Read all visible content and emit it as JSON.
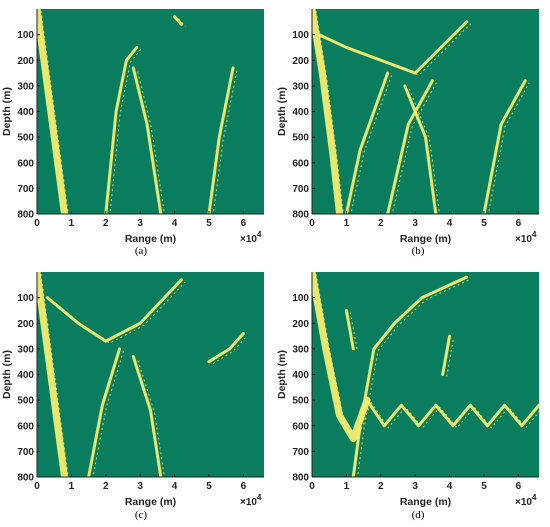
{
  "colors": {
    "background": "#0b7d5f",
    "signal": "#f3ee6e",
    "axis": "#222222"
  },
  "chart_data": [
    {
      "type": "heatmap",
      "panel_caption": "(a)",
      "xlabel": "Range (m)",
      "ylabel": "Depth (m)",
      "x_exponent_label": "×10",
      "x_exponent": "4",
      "xlim": [
        0,
        6.6
      ],
      "ylim": [
        0,
        800
      ],
      "y_inverted": true,
      "x_ticks": [
        "0",
        "1",
        "2",
        "3",
        "4",
        "5",
        "6"
      ],
      "y_ticks": [
        "100",
        "200",
        "300",
        "400",
        "500",
        "600",
        "700",
        "800"
      ],
      "rays": [
        {
          "points": [
            [
              0,
              0
            ],
            [
              0.2,
              200
            ],
            [
              0.5,
              500
            ],
            [
              0.8,
              800
            ]
          ]
        },
        {
          "points": [
            [
              2.0,
              800
            ],
            [
              2.3,
              400
            ],
            [
              2.6,
              200
            ],
            [
              2.9,
              150
            ]
          ]
        },
        {
          "points": [
            [
              3.6,
              800
            ],
            [
              3.2,
              450
            ],
            [
              2.8,
              230
            ]
          ]
        },
        {
          "points": [
            [
              4.0,
              30
            ],
            [
              4.2,
              60
            ]
          ]
        },
        {
          "points": [
            [
              5.0,
              800
            ],
            [
              5.3,
              500
            ],
            [
              5.7,
              230
            ]
          ]
        }
      ]
    },
    {
      "type": "heatmap",
      "panel_caption": "(b)",
      "xlabel": "Range (m)",
      "ylabel": "Depth (m)",
      "x_exponent_label": "×10",
      "x_exponent": "4",
      "xlim": [
        0,
        6.6
      ],
      "ylim": [
        0,
        800
      ],
      "y_inverted": true,
      "x_ticks": [
        "0",
        "1",
        "2",
        "3",
        "4",
        "5",
        "6"
      ],
      "y_ticks": [
        "100",
        "200",
        "300",
        "400",
        "500",
        "600",
        "700",
        "800"
      ],
      "rays": [
        {
          "points": [
            [
              0,
              0
            ],
            [
              0.3,
              250
            ],
            [
              0.6,
              560
            ],
            [
              0.8,
              800
            ]
          ]
        },
        {
          "points": [
            [
              0.2,
              100
            ],
            [
              1.0,
              150
            ],
            [
              2.0,
              200
            ],
            [
              3.0,
              250
            ],
            [
              4.5,
              50
            ]
          ]
        },
        {
          "points": [
            [
              1.0,
              800
            ],
            [
              1.4,
              550
            ],
            [
              2.2,
              250
            ]
          ]
        },
        {
          "points": [
            [
              2.2,
              800
            ],
            [
              2.8,
              450
            ],
            [
              3.5,
              280
            ]
          ]
        },
        {
          "points": [
            [
              3.6,
              800
            ],
            [
              3.3,
              500
            ],
            [
              2.7,
              300
            ]
          ]
        },
        {
          "points": [
            [
              5.0,
              800
            ],
            [
              5.5,
              450
            ],
            [
              6.2,
              280
            ]
          ]
        }
      ]
    },
    {
      "type": "heatmap",
      "panel_caption": "(c)",
      "xlabel": "Range (m)",
      "ylabel": "Depth (m)",
      "x_exponent_label": "×10",
      "x_exponent": "4",
      "xlim": [
        0,
        6.6
      ],
      "ylim": [
        0,
        800
      ],
      "y_inverted": true,
      "x_ticks": [
        "0",
        "1",
        "2",
        "3",
        "4",
        "5",
        "6"
      ],
      "y_ticks": [
        "100",
        "200",
        "300",
        "400",
        "500",
        "600",
        "700",
        "800"
      ],
      "rays": [
        {
          "points": [
            [
              0,
              0
            ],
            [
              0.3,
              300
            ],
            [
              0.6,
              600
            ],
            [
              0.8,
              800
            ]
          ]
        },
        {
          "points": [
            [
              0.3,
              100
            ],
            [
              1.2,
              200
            ],
            [
              2.0,
              270
            ],
            [
              3.0,
              200
            ],
            [
              4.2,
              30
            ]
          ]
        },
        {
          "points": [
            [
              1.5,
              800
            ],
            [
              1.9,
              520
            ],
            [
              2.4,
              300
            ]
          ]
        },
        {
          "points": [
            [
              3.6,
              800
            ],
            [
              3.3,
              540
            ],
            [
              2.8,
              330
            ]
          ]
        },
        {
          "points": [
            [
              5.0,
              350
            ],
            [
              5.6,
              300
            ],
            [
              6.0,
              240
            ]
          ]
        }
      ]
    },
    {
      "type": "heatmap",
      "panel_caption": "(d)",
      "xlabel": "Range (m)",
      "ylabel": "Depth (m)",
      "x_exponent_label": "×10",
      "x_exponent": "4",
      "xlim": [
        0,
        6.6
      ],
      "ylim": [
        0,
        800
      ],
      "y_inverted": true,
      "x_ticks": [
        "0",
        "1",
        "2",
        "3",
        "4",
        "5",
        "6"
      ],
      "y_ticks": [
        "100",
        "200",
        "300",
        "400",
        "500",
        "600",
        "700",
        "800"
      ],
      "rays": [
        {
          "points": [
            [
              0,
              0
            ],
            [
              0.4,
              300
            ],
            [
              0.8,
              560
            ],
            [
              1.2,
              650
            ],
            [
              1.6,
              500
            ]
          ]
        },
        {
          "points": [
            [
              1.6,
              500
            ],
            [
              2.1,
              600
            ],
            [
              2.6,
              520
            ],
            [
              3.1,
              600
            ],
            [
              3.6,
              520
            ],
            [
              4.1,
              600
            ],
            [
              4.6,
              520
            ],
            [
              5.1,
              600
            ],
            [
              5.6,
              520
            ],
            [
              6.1,
              600
            ],
            [
              6.6,
              520
            ]
          ]
        },
        {
          "points": [
            [
              1.2,
              800
            ],
            [
              1.4,
              600
            ],
            [
              1.8,
              300
            ],
            [
              2.4,
              200
            ],
            [
              3.2,
              100
            ],
            [
              4.5,
              20
            ]
          ]
        },
        {
          "points": [
            [
              1.0,
              150
            ],
            [
              1.2,
              300
            ]
          ]
        },
        {
          "points": [
            [
              3.8,
              400
            ],
            [
              4.0,
              250
            ]
          ]
        }
      ]
    }
  ]
}
